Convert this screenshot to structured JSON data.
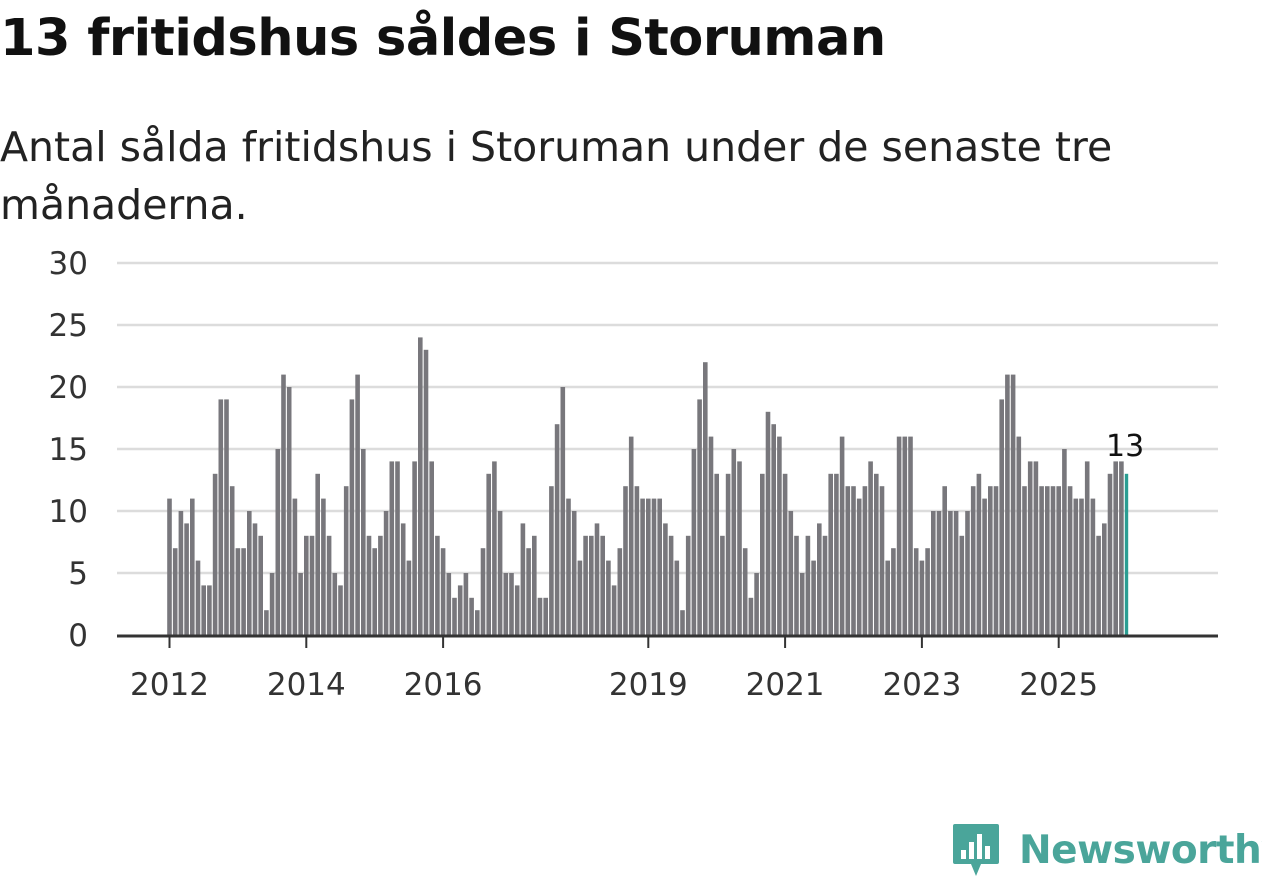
{
  "title": "13 fritidshus såldes i Storuman",
  "subtitle": "Antal sålda fritidshus i Storuman under de senaste tre månaderna.",
  "brand": "Newsworthy",
  "colors": {
    "bar": "#78777c",
    "highlight": "#2a9d92",
    "grid": "#dcdcdc",
    "axis": "#333333",
    "brand": "#4aa59a"
  },
  "chart_data": {
    "type": "bar",
    "title": "13 fritidshus såldes i Storuman",
    "xlabel": "",
    "ylabel": "",
    "ylim": [
      0,
      30
    ],
    "yticks": [
      0,
      5,
      10,
      15,
      20,
      25,
      30
    ],
    "grid": true,
    "start": "2012-01",
    "xticks": [
      {
        "label": "2012",
        "index": 0
      },
      {
        "label": "2014",
        "index": 24
      },
      {
        "label": "2016",
        "index": 48
      },
      {
        "label": "2019",
        "index": 84
      },
      {
        "label": "2021",
        "index": 108
      },
      {
        "label": "2023",
        "index": 132
      },
      {
        "label": "2025",
        "index": 156
      }
    ],
    "values": [
      11,
      7,
      10,
      9,
      11,
      6,
      4,
      4,
      13,
      19,
      19,
      12,
      7,
      7,
      10,
      9,
      8,
      2,
      5,
      15,
      21,
      20,
      11,
      5,
      8,
      8,
      13,
      11,
      8,
      5,
      4,
      12,
      19,
      21,
      15,
      8,
      7,
      8,
      10,
      14,
      14,
      9,
      6,
      14,
      24,
      23,
      14,
      8,
      7,
      5,
      3,
      4,
      5,
      3,
      2,
      7,
      13,
      14,
      10,
      5,
      5,
      4,
      9,
      7,
      8,
      3,
      3,
      12,
      17,
      20,
      11,
      10,
      6,
      8,
      8,
      9,
      8,
      6,
      4,
      7,
      12,
      16,
      12,
      11,
      11,
      11,
      11,
      9,
      8,
      6,
      2,
      8,
      15,
      19,
      22,
      16,
      13,
      8,
      13,
      15,
      14,
      7,
      3,
      5,
      13,
      18,
      17,
      16,
      13,
      10,
      8,
      5,
      8,
      6,
      9,
      8,
      13,
      13,
      16,
      12,
      12,
      11,
      12,
      14,
      13,
      12,
      6,
      7,
      16,
      16,
      16,
      7,
      6,
      7,
      10,
      10,
      12,
      10,
      10,
      8,
      10,
      12,
      13,
      11,
      12,
      12,
      19,
      21,
      21,
      16,
      12,
      14,
      14,
      12,
      12,
      12,
      12,
      15,
      12,
      11,
      11,
      14,
      11,
      8,
      9,
      13,
      14,
      14,
      13
    ],
    "highlight_index": 168,
    "highlight_label": "13"
  }
}
